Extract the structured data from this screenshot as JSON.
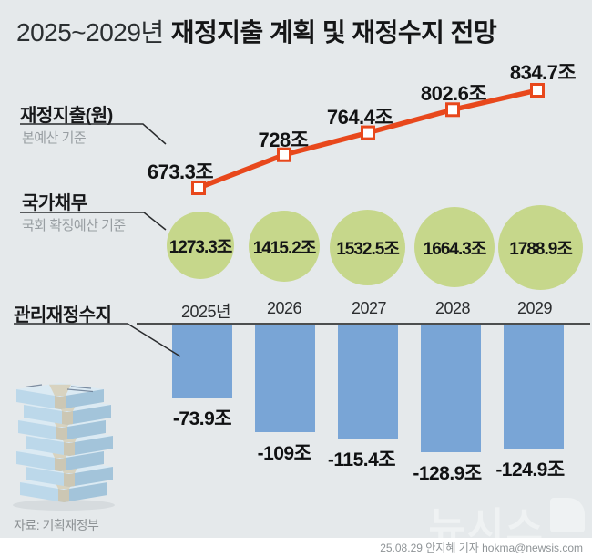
{
  "title": {
    "range": "2025~2029년",
    "main": "재정지출 계획 및 재정수지 전망"
  },
  "sections": {
    "expenditure": {
      "label": "재정지출(원)",
      "basis": "본예산 기준"
    },
    "debt": {
      "label": "국가채무",
      "basis": "국회 확정예산 기준"
    },
    "balance": {
      "label": "관리재정수지"
    }
  },
  "chart_data": {
    "type": "combo",
    "categories": [
      "2025년",
      "2026",
      "2027",
      "2028",
      "2029"
    ],
    "series": [
      {
        "name": "재정지출",
        "type": "line",
        "unit": "조원",
        "color": "#e8481c",
        "values": [
          673.3,
          728,
          764.4,
          802.6,
          834.7
        ],
        "labels": [
          "673.3조",
          "728조",
          "764.4조",
          "802.6조",
          "834.7조"
        ]
      },
      {
        "name": "국가채무",
        "type": "bubble",
        "unit": "조원",
        "color": "#c6d78b",
        "values": [
          1273.3,
          1415.2,
          1532.5,
          1664.3,
          1788.9
        ],
        "labels": [
          "1273.3조",
          "1415.2조",
          "1532.5조",
          "1664.3조",
          "1788.9조"
        ]
      },
      {
        "name": "관리재정수지",
        "type": "bar",
        "unit": "조원",
        "color": "#79a5d6",
        "values": [
          -73.9,
          -109,
          -115.4,
          -128.9,
          -124.9
        ],
        "labels": [
          "-73.9조",
          "-109조",
          "-115.4조",
          "-128.9조",
          "-124.9조"
        ],
        "ylim": [
          -140,
          0
        ]
      }
    ],
    "legend_position": "left",
    "grid": false
  },
  "footer": {
    "source": "자료: 기획재정부",
    "credit": "25.08.29 안지혜 기자 hokma@newsis.com",
    "watermark": "뉴시스"
  },
  "colors": {
    "background": "#e5e9eb",
    "line": "#e8481c",
    "bubble": "#c6d78b",
    "bar": "#79a5d6",
    "baseline": "#1a1a1a",
    "muted_text": "#989ea2"
  }
}
